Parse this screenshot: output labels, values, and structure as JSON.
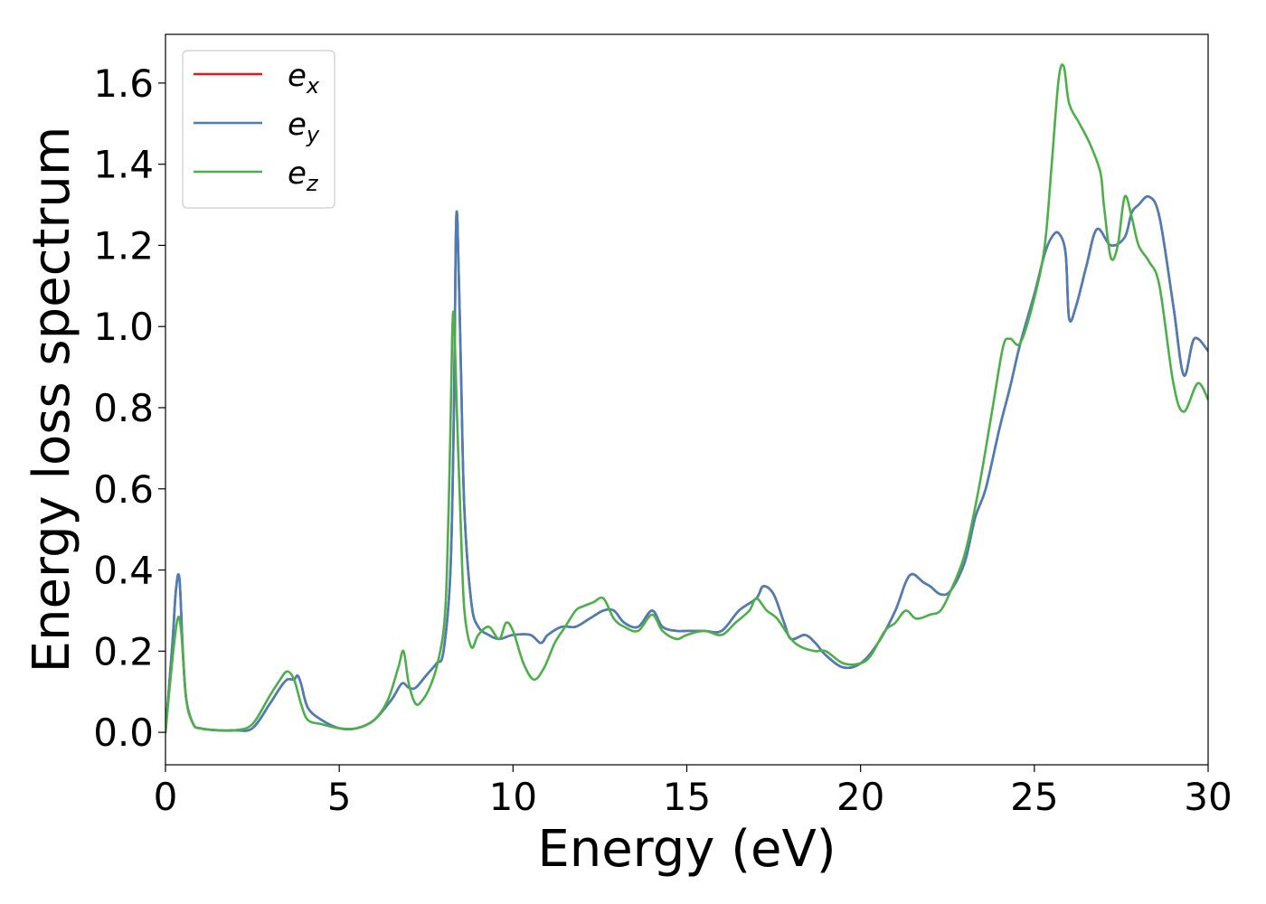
{
  "chart_data": {
    "type": "line",
    "title": "",
    "xlabel": "Energy (eV)",
    "ylabel": "Energy loss spectrum",
    "xlim": [
      0,
      30
    ],
    "ylim": [
      -0.08,
      1.72
    ],
    "xticks": [
      0,
      5,
      10,
      15,
      20,
      25,
      30
    ],
    "xtick_labels": [
      "0",
      "5",
      "10",
      "15",
      "20",
      "25",
      "30"
    ],
    "yticks": [
      0.0,
      0.2,
      0.4,
      0.6,
      0.8,
      1.0,
      1.2,
      1.4,
      1.6
    ],
    "ytick_labels": [
      "0.0",
      "0.2",
      "0.4",
      "0.6",
      "0.8",
      "1.0",
      "1.2",
      "1.4",
      "1.6"
    ],
    "grid": false,
    "legend_position": "top-left",
    "series": [
      {
        "name": "ex",
        "base": "e",
        "sub": "x",
        "color": "#e41a1c",
        "x": [
          0,
          0.2,
          0.3,
          0.4,
          0.5,
          0.6,
          0.8,
          1.0,
          1.5,
          2.0,
          2.5,
          3.0,
          3.3,
          3.5,
          3.7,
          3.8,
          3.9,
          4.1,
          4.5,
          5.0,
          5.5,
          6.0,
          6.5,
          6.8,
          7.0,
          7.2,
          7.5,
          7.8,
          8.0,
          8.2,
          8.3,
          8.35,
          8.4,
          8.5,
          8.6,
          8.8,
          9.0,
          9.3,
          9.6,
          10.0,
          10.5,
          10.8,
          11.0,
          11.4,
          11.8,
          12.2,
          12.6,
          12.9,
          13.2,
          13.6,
          14.0,
          14.3,
          14.7,
          15.0,
          15.5,
          16.0,
          16.5,
          17.0,
          17.2,
          17.5,
          17.8,
          18.0,
          18.4,
          18.7,
          19.0,
          19.5,
          20.0,
          20.5,
          21.0,
          21.3,
          21.5,
          21.8,
          22.0,
          22.3,
          22.6,
          23.0,
          23.3,
          23.6,
          24.0,
          24.3,
          24.6,
          25.0,
          25.3,
          25.5,
          25.7,
          25.9,
          26.0,
          26.2,
          26.5,
          26.8,
          27.2,
          27.6,
          27.8,
          28.0,
          28.3,
          28.6,
          29.0,
          29.3,
          29.6,
          30.0
        ],
        "y": [
          0.0,
          0.22,
          0.35,
          0.38,
          0.2,
          0.08,
          0.02,
          0.01,
          0.005,
          0.005,
          0.01,
          0.07,
          0.11,
          0.13,
          0.13,
          0.14,
          0.12,
          0.06,
          0.03,
          0.01,
          0.01,
          0.03,
          0.08,
          0.12,
          0.11,
          0.11,
          0.14,
          0.17,
          0.2,
          0.4,
          0.8,
          1.2,
          1.26,
          0.9,
          0.55,
          0.32,
          0.26,
          0.24,
          0.23,
          0.24,
          0.24,
          0.22,
          0.24,
          0.26,
          0.26,
          0.28,
          0.3,
          0.3,
          0.27,
          0.26,
          0.3,
          0.26,
          0.25,
          0.25,
          0.25,
          0.25,
          0.3,
          0.33,
          0.36,
          0.34,
          0.27,
          0.23,
          0.24,
          0.22,
          0.19,
          0.16,
          0.17,
          0.22,
          0.3,
          0.37,
          0.39,
          0.37,
          0.36,
          0.34,
          0.35,
          0.42,
          0.53,
          0.6,
          0.75,
          0.85,
          0.96,
          1.08,
          1.18,
          1.22,
          1.23,
          1.18,
          1.02,
          1.05,
          1.15,
          1.24,
          1.2,
          1.22,
          1.28,
          1.3,
          1.32,
          1.27,
          1.05,
          0.88,
          0.97,
          0.94
        ]
      },
      {
        "name": "ey",
        "base": "e",
        "sub": "y",
        "color": "#4a7fb5",
        "x": [
          0,
          0.2,
          0.3,
          0.4,
          0.5,
          0.6,
          0.8,
          1.0,
          1.5,
          2.0,
          2.5,
          3.0,
          3.3,
          3.5,
          3.7,
          3.8,
          3.9,
          4.1,
          4.5,
          5.0,
          5.5,
          6.0,
          6.5,
          6.8,
          7.0,
          7.2,
          7.5,
          7.8,
          8.0,
          8.2,
          8.3,
          8.35,
          8.4,
          8.5,
          8.6,
          8.8,
          9.0,
          9.3,
          9.6,
          10.0,
          10.5,
          10.8,
          11.0,
          11.4,
          11.8,
          12.2,
          12.6,
          12.9,
          13.2,
          13.6,
          14.0,
          14.3,
          14.7,
          15.0,
          15.5,
          16.0,
          16.5,
          17.0,
          17.2,
          17.5,
          17.8,
          18.0,
          18.4,
          18.7,
          19.0,
          19.5,
          20.0,
          20.5,
          21.0,
          21.3,
          21.5,
          21.8,
          22.0,
          22.3,
          22.6,
          23.0,
          23.3,
          23.6,
          24.0,
          24.3,
          24.6,
          25.0,
          25.3,
          25.5,
          25.7,
          25.9,
          26.0,
          26.2,
          26.5,
          26.8,
          27.2,
          27.6,
          27.8,
          28.0,
          28.3,
          28.6,
          29.0,
          29.3,
          29.6,
          30.0
        ],
        "y": [
          0.0,
          0.22,
          0.35,
          0.38,
          0.2,
          0.08,
          0.02,
          0.01,
          0.005,
          0.005,
          0.01,
          0.07,
          0.11,
          0.13,
          0.13,
          0.14,
          0.12,
          0.06,
          0.03,
          0.01,
          0.01,
          0.03,
          0.08,
          0.12,
          0.11,
          0.11,
          0.14,
          0.17,
          0.2,
          0.4,
          0.8,
          1.2,
          1.26,
          0.9,
          0.55,
          0.32,
          0.26,
          0.24,
          0.23,
          0.24,
          0.24,
          0.22,
          0.24,
          0.26,
          0.26,
          0.28,
          0.3,
          0.3,
          0.27,
          0.26,
          0.3,
          0.26,
          0.25,
          0.25,
          0.25,
          0.25,
          0.3,
          0.33,
          0.36,
          0.34,
          0.27,
          0.23,
          0.24,
          0.22,
          0.19,
          0.16,
          0.17,
          0.22,
          0.3,
          0.37,
          0.39,
          0.37,
          0.36,
          0.34,
          0.35,
          0.42,
          0.53,
          0.6,
          0.75,
          0.85,
          0.96,
          1.08,
          1.18,
          1.22,
          1.23,
          1.18,
          1.02,
          1.05,
          1.15,
          1.24,
          1.2,
          1.22,
          1.28,
          1.3,
          1.32,
          1.27,
          1.05,
          0.88,
          0.97,
          0.94
        ]
      },
      {
        "name": "ez",
        "base": "e",
        "sub": "z",
        "color": "#4daf4a",
        "x": [
          0,
          0.2,
          0.35,
          0.45,
          0.6,
          0.8,
          1.0,
          1.5,
          2.0,
          2.5,
          3.0,
          3.3,
          3.5,
          3.7,
          3.9,
          4.1,
          4.5,
          5.0,
          5.5,
          6.0,
          6.4,
          6.7,
          6.85,
          7.0,
          7.2,
          7.4,
          7.6,
          7.8,
          8.0,
          8.1,
          8.2,
          8.25,
          8.3,
          8.4,
          8.5,
          8.6,
          8.8,
          9.0,
          9.3,
          9.6,
          9.8,
          10.0,
          10.3,
          10.6,
          10.9,
          11.2,
          11.5,
          11.8,
          12.0,
          12.3,
          12.6,
          12.9,
          13.2,
          13.6,
          14.0,
          14.3,
          14.7,
          15.0,
          15.5,
          16.0,
          16.4,
          16.8,
          17.0,
          17.3,
          17.6,
          18.0,
          18.3,
          18.7,
          19.0,
          19.5,
          20.0,
          20.3,
          20.7,
          21.0,
          21.3,
          21.6,
          22.0,
          22.3,
          22.6,
          23.0,
          23.4,
          23.8,
          24.1,
          24.3,
          24.6,
          25.0,
          25.3,
          25.5,
          25.7,
          25.85,
          26.0,
          26.3,
          26.6,
          26.9,
          27.0,
          27.2,
          27.4,
          27.6,
          27.8,
          28.0,
          28.3,
          28.6,
          29.0,
          29.3,
          29.7,
          30.0
        ],
        "y": [
          0.0,
          0.18,
          0.28,
          0.25,
          0.08,
          0.02,
          0.01,
          0.005,
          0.005,
          0.02,
          0.09,
          0.13,
          0.15,
          0.13,
          0.07,
          0.03,
          0.02,
          0.01,
          0.01,
          0.03,
          0.08,
          0.16,
          0.2,
          0.12,
          0.07,
          0.08,
          0.11,
          0.16,
          0.25,
          0.4,
          0.75,
          0.98,
          1.02,
          0.75,
          0.5,
          0.3,
          0.21,
          0.24,
          0.26,
          0.23,
          0.27,
          0.25,
          0.17,
          0.13,
          0.16,
          0.22,
          0.26,
          0.3,
          0.31,
          0.32,
          0.33,
          0.28,
          0.26,
          0.25,
          0.29,
          0.25,
          0.23,
          0.24,
          0.25,
          0.24,
          0.27,
          0.3,
          0.33,
          0.3,
          0.28,
          0.23,
          0.21,
          0.2,
          0.2,
          0.17,
          0.17,
          0.19,
          0.25,
          0.27,
          0.3,
          0.28,
          0.29,
          0.3,
          0.35,
          0.44,
          0.6,
          0.8,
          0.95,
          0.97,
          0.96,
          1.07,
          1.2,
          1.4,
          1.61,
          1.64,
          1.55,
          1.5,
          1.45,
          1.38,
          1.3,
          1.17,
          1.2,
          1.32,
          1.27,
          1.2,
          1.16,
          1.1,
          0.86,
          0.79,
          0.86,
          0.82
        ]
      }
    ]
  }
}
